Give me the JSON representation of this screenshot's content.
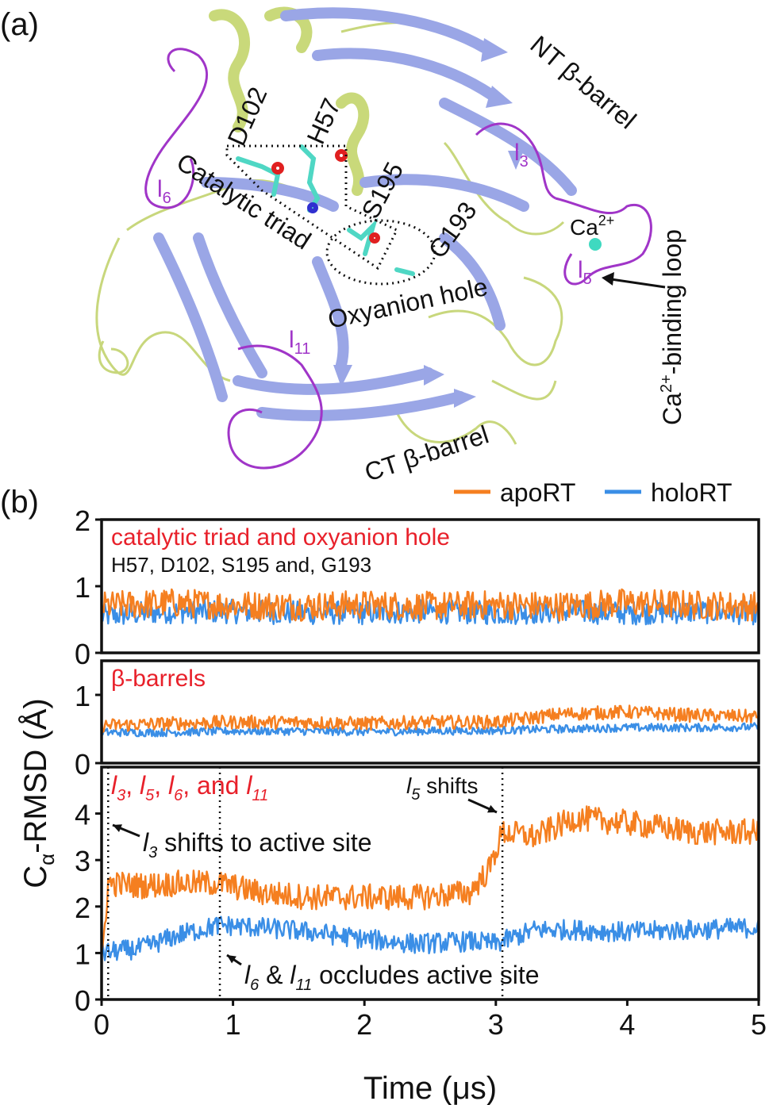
{
  "panel_a": {
    "label": "(a)",
    "labels": {
      "nt_barrel": "NT β-barrel",
      "ct_barrel": "CT β-barrel",
      "d102": "D102",
      "h57": "H57",
      "s195": "S195",
      "g193": "G193",
      "catalytic_triad": "Catalytic triad",
      "oxyanion_hole": "Oxyanion hole",
      "ca_ion": "Ca",
      "ca_charge": "2+",
      "ca_loop": "Ca",
      "ca_loop_charge": "2+",
      "ca_loop_rest": "-binding loop",
      "l3": "l",
      "l3_sub": "3",
      "l5": "l",
      "l5_sub": "5",
      "l6": "l",
      "l6_sub": "6",
      "l11": "l",
      "l11_sub": "11"
    },
    "colors": {
      "helix": "#c9d97a",
      "sheet": "#9aa6e6",
      "coil": "#c8d77c",
      "loop": "#a035c8",
      "ca": "#3fd9c0"
    }
  },
  "panel_b": {
    "label": "(b)",
    "xlabel": "Time (μs)",
    "ylabel_main": "C",
    "ylabel_sub": "α",
    "ylabel_rest": "-RMSD (Å)",
    "legend": [
      {
        "name": "apoRT",
        "color": "#f57f20"
      },
      {
        "name": "holoRT",
        "color": "#3a8ee6"
      }
    ]
  },
  "chart_data": [
    {
      "type": "line",
      "title": "catalytic triad and oxyanion hole",
      "subtitle": "H57, D102, S195 and, G193",
      "xlim": [
        0,
        5
      ],
      "ylim": [
        0,
        2
      ],
      "yticks": [
        0,
        1,
        2
      ],
      "series": [
        {
          "name": "apoRT",
          "x": [
            0,
            0.5,
            1,
            1.5,
            2,
            2.5,
            3,
            3.5,
            4,
            4.5,
            5
          ],
          "values": [
            0.7,
            0.75,
            0.72,
            0.7,
            0.72,
            0.7,
            0.72,
            0.7,
            0.75,
            0.72,
            0.7
          ]
        },
        {
          "name": "holoRT",
          "x": [
            0,
            0.5,
            1,
            1.5,
            2,
            2.5,
            3,
            3.5,
            4,
            4.5,
            5
          ],
          "values": [
            0.55,
            0.62,
            0.62,
            0.6,
            0.6,
            0.62,
            0.6,
            0.62,
            0.6,
            0.62,
            0.6
          ]
        }
      ]
    },
    {
      "type": "line",
      "title": "β-barrels",
      "xlim": [
        0,
        5
      ],
      "ylim": [
        0,
        1.5
      ],
      "yticks": [
        0,
        1
      ],
      "series": [
        {
          "name": "apoRT",
          "x": [
            0,
            0.5,
            1,
            1.5,
            2,
            2.5,
            3,
            3.5,
            4,
            4.5,
            5
          ],
          "values": [
            0.55,
            0.58,
            0.6,
            0.6,
            0.58,
            0.6,
            0.6,
            0.72,
            0.75,
            0.7,
            0.68
          ]
        },
        {
          "name": "holoRT",
          "x": [
            0,
            0.5,
            1,
            1.5,
            2,
            2.5,
            3,
            3.5,
            4,
            4.5,
            5
          ],
          "values": [
            0.45,
            0.45,
            0.47,
            0.47,
            0.46,
            0.47,
            0.48,
            0.5,
            0.52,
            0.52,
            0.53
          ]
        }
      ]
    },
    {
      "type": "line",
      "title_parts": {
        "l3": "l",
        "l3_sub": "3",
        "l5": "l",
        "l5_sub": "5",
        "l6": "l",
        "l6_sub": "6",
        "l11": "l",
        "l11_sub": "11",
        "sep1": ", ",
        "sep2": ", ",
        "sep3": ", and "
      },
      "xlim": [
        0,
        5
      ],
      "ylim": [
        0,
        5
      ],
      "xticks": [
        0,
        1,
        2,
        3,
        4,
        5
      ],
      "yticks": [
        0,
        1,
        2,
        3,
        4
      ],
      "vlines": [
        0.05,
        0.9,
        3.05
      ],
      "annotations": [
        {
          "id": "a1",
          "pre": "l",
          "sub": "3",
          "text": " shifts to active site"
        },
        {
          "id": "a2",
          "pre": "l",
          "sub": "6",
          "mid": " & ",
          "pre2": "l",
          "sub2": "11",
          "text": " occludes active site"
        },
        {
          "id": "a3",
          "pre": "l",
          "sub": "5",
          "text": " shifts"
        }
      ],
      "series": [
        {
          "name": "apoRT",
          "x": [
            0,
            0.05,
            0.3,
            0.6,
            0.9,
            1.2,
            1.6,
            2.0,
            2.4,
            2.8,
            2.95,
            3.05,
            3.3,
            3.6,
            4.0,
            4.5,
            5.0
          ],
          "values": [
            0.8,
            2.5,
            2.45,
            2.5,
            2.5,
            2.3,
            2.2,
            2.2,
            2.2,
            2.3,
            2.8,
            3.6,
            3.5,
            3.9,
            3.8,
            3.6,
            3.6
          ]
        },
        {
          "name": "holoRT",
          "x": [
            0,
            0.3,
            0.6,
            0.9,
            1.2,
            1.6,
            2.0,
            2.4,
            2.8,
            3.0,
            3.3,
            3.6,
            4.0,
            4.5,
            5.0
          ],
          "values": [
            1.0,
            1.1,
            1.4,
            1.6,
            1.55,
            1.45,
            1.3,
            1.2,
            1.25,
            1.2,
            1.5,
            1.5,
            1.45,
            1.5,
            1.55
          ]
        }
      ]
    }
  ]
}
